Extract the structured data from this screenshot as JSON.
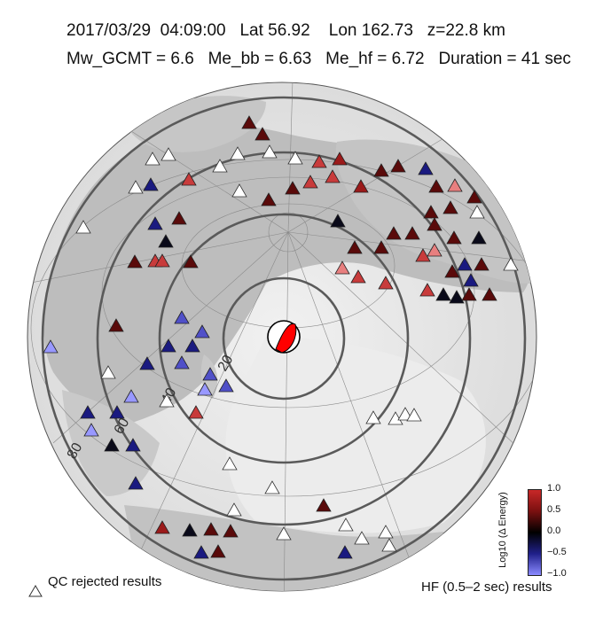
{
  "header": {
    "line1": "2017/03/29  04:09:00   Lat 56.92    Lon 162.73   z=22.8 km",
    "line2": "Mw_GCMT = 6.6   Me_bb = 6.63   Me_hf = 6.72   Duration = 41 sec"
  },
  "distance_labels": [
    "20",
    "40",
    "60",
    "80"
  ],
  "legend": {
    "qc_label": "QC rejected results",
    "hf_label": "HF (0.5–2 sec) results"
  },
  "colorbar": {
    "title": "Log10 (Δ Energy)",
    "ticks": [
      "1.0",
      "0.5",
      "0.0",
      "−0.5",
      "−1.0"
    ],
    "colors": {
      "high": "#c82828",
      "mid": "#000000",
      "low": "#8a8aff"
    }
  },
  "beachball": {
    "fill": "#ff0000"
  }
}
